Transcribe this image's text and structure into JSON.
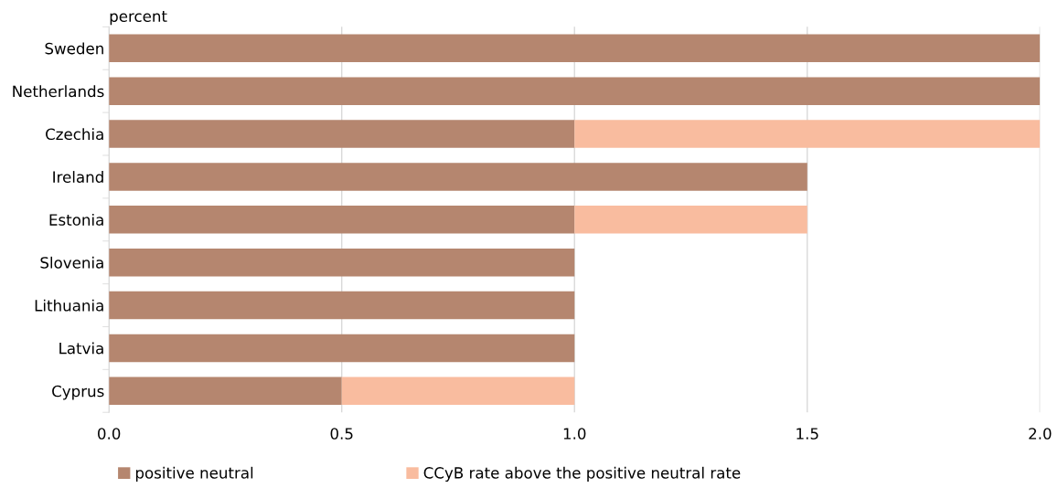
{
  "chart_data": {
    "type": "bar",
    "orientation": "horizontal",
    "stacked": true,
    "xlabel": "percent",
    "categories": [
      "Sweden",
      "Netherlands",
      "Czechia",
      "Ireland",
      "Estonia",
      "Slovenia",
      "Lithuania",
      "Latvia",
      "Cyprus"
    ],
    "series": [
      {
        "name": "positive neutral",
        "color": "#b5866f",
        "values": [
          2,
          2,
          1,
          1.5,
          1,
          1,
          1,
          1,
          0.5
        ]
      },
      {
        "name": "CCyB rate above the positive neutral rate",
        "color": "#f9bc9f",
        "values": [
          null,
          null,
          1,
          null,
          0.5,
          null,
          null,
          null,
          0.5
        ]
      }
    ],
    "xlim": [
      0,
      2
    ],
    "xticks": [
      {
        "value": 0,
        "label": "0.0"
      },
      {
        "value": 0.5,
        "label": "0.5"
      },
      {
        "value": 1,
        "label": "1.0"
      },
      {
        "value": 1.5,
        "label": "1.5"
      },
      {
        "value": 2,
        "label": "2.0"
      }
    ],
    "grid": "x",
    "legend": "bottom"
  }
}
